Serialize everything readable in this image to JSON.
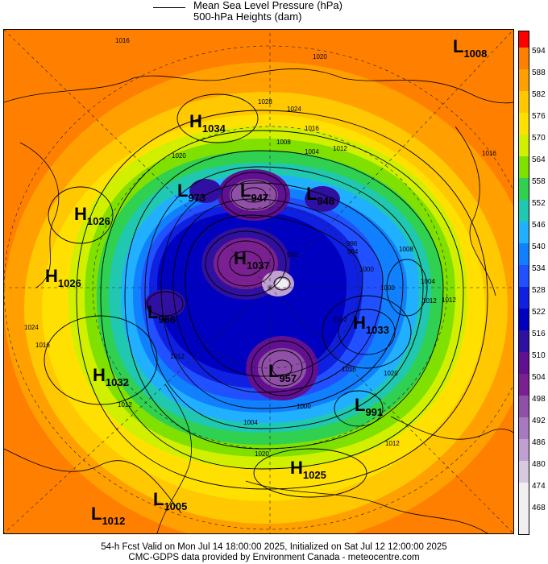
{
  "legend": {
    "mslp_label": "Mean Sea Level Pressure (hPa)",
    "heights_label": "500-hPa Heights (dam)"
  },
  "footer": {
    "line1": "54-h Fcst Valid on Mon Jul 14 18:00:00 2025, Initialized on Sat Jul 12 12:00:00 2025",
    "line2": "CMC-GDPS data provided by Environment Canada - meteocentre.com"
  },
  "colorbar": {
    "labels": [
      "594",
      "588",
      "582",
      "576",
      "570",
      "564",
      "558",
      "552",
      "546",
      "540",
      "534",
      "528",
      "522",
      "516",
      "510",
      "504",
      "498",
      "492",
      "486",
      "480",
      "474",
      "468"
    ],
    "colors": [
      "#ff0000",
      "#ff8000",
      "#ffa000",
      "#ffc800",
      "#ffe000",
      "#d0f000",
      "#80e000",
      "#30d050",
      "#20c8b0",
      "#20b0ff",
      "#1080ff",
      "#2050ff",
      "#1020e0",
      "#0000c0",
      "#3010a0",
      "#601090",
      "#7a2090",
      "#9050a8",
      "#a878c0",
      "#c0a0d0",
      "#d8c8e0",
      "#f0f0f0"
    ]
  },
  "systems": [
    {
      "type": "L",
      "value": "1008"
    },
    {
      "type": "H",
      "value": "1034"
    },
    {
      "type": "L",
      "value": "973"
    },
    {
      "type": "L",
      "value": "947"
    },
    {
      "type": "L",
      "value": "946"
    },
    {
      "type": "H",
      "value": "1026"
    },
    {
      "type": "H",
      "value": "1026"
    },
    {
      "type": "H",
      "value": "1037"
    },
    {
      "type": "L",
      "value": "966"
    },
    {
      "type": "H",
      "value": "1033"
    },
    {
      "type": "L",
      "value": "957"
    },
    {
      "type": "H",
      "value": "1032"
    },
    {
      "type": "L",
      "value": "991"
    },
    {
      "type": "H",
      "value": "1025"
    },
    {
      "type": "L",
      "value": "1005"
    },
    {
      "type": "L",
      "value": "1012"
    }
  ],
  "isobar_labels": [
    "1016",
    "1020",
    "1028",
    "1024",
    "1016",
    "1008",
    "1004",
    "1012",
    "1020",
    "1016",
    "1012",
    "1008",
    "1000",
    "996",
    "992",
    "984",
    "1000",
    "1004",
    "1012",
    "1012",
    "1020",
    "1024",
    "1016",
    "1012",
    "1004",
    "1012",
    "1000",
    "1016",
    "1020",
    "1012"
  ]
}
